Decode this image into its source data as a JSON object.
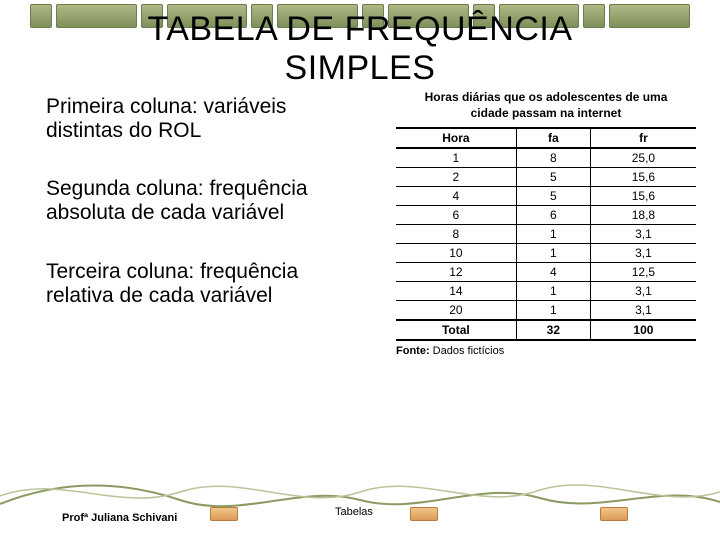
{
  "title": {
    "line1": "TABELA DE FREQUÊNCIA",
    "line2": "SIMPLES"
  },
  "paragraphs": {
    "p1": "Primeira coluna: variáveis distintas do ROL",
    "p2": "Segunda coluna: frequência absoluta de cada variável",
    "p3": "Terceira coluna: frequência relativa de cada variável"
  },
  "freq_table": {
    "title": "Horas diárias que os adolescentes de uma cidade passam na internet",
    "columns": [
      "Hora",
      "fa",
      "fr"
    ],
    "rows": [
      [
        "1",
        "8",
        "25,0"
      ],
      [
        "2",
        "5",
        "15,6"
      ],
      [
        "4",
        "5",
        "15,6"
      ],
      [
        "6",
        "6",
        "18,8"
      ],
      [
        "8",
        "1",
        "3,1"
      ],
      [
        "10",
        "1",
        "3,1"
      ],
      [
        "12",
        "4",
        "12,5"
      ],
      [
        "14",
        "1",
        "3,1"
      ],
      [
        "20",
        "1",
        "3,1"
      ]
    ],
    "total": [
      "Total",
      "32",
      "100"
    ],
    "source_label": "Fonte:",
    "source_text": "Dados fictícios",
    "header_bg": "#ffffff",
    "border_color": "#000000",
    "text_color": "#000000",
    "fontsize": 12
  },
  "footer": {
    "left": "Profª Juliana Schivani",
    "center": "Tabelas"
  },
  "decor": {
    "top_segment_fill": "#9aab6e",
    "top_segment_border": "#6d7a4d",
    "wave_color": "#8a9a62",
    "footer_box_fill": "#e4ae6c",
    "footer_box_border": "#bb7a3a"
  }
}
